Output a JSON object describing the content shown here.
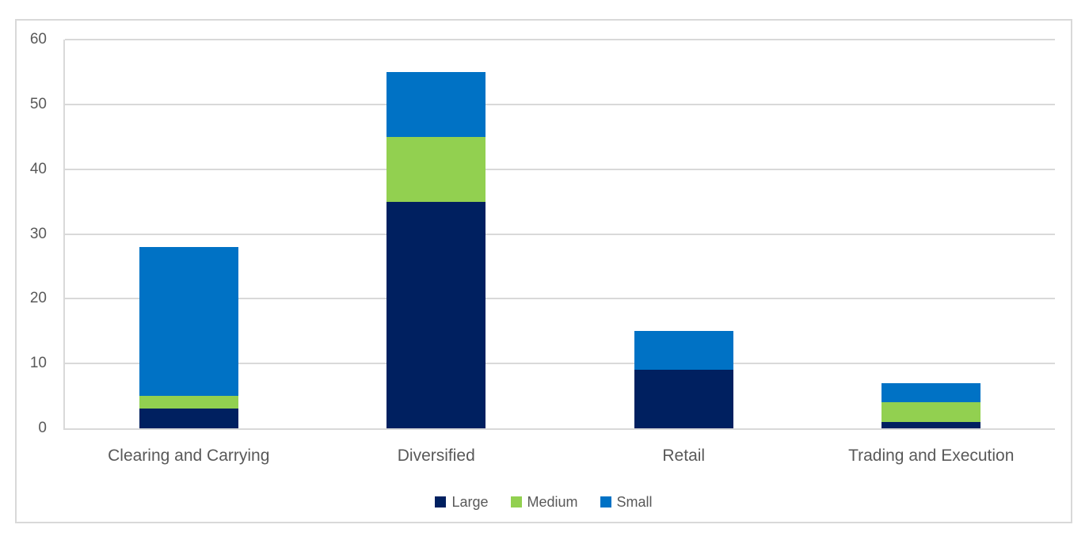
{
  "figure": {
    "background": "#FFFFFF",
    "frame_border_color": "#D9D9D9"
  },
  "chart_data": {
    "type": "bar",
    "stacked": true,
    "title": "",
    "xlabel": "",
    "ylabel": "",
    "categories": [
      "Clearing and Carrying",
      "Diversified",
      "Retail",
      "Trading and Execution"
    ],
    "series": [
      {
        "name": "Large",
        "color": "#002060",
        "values": [
          3,
          35,
          9,
          1
        ]
      },
      {
        "name": "Medium",
        "color": "#92D050",
        "values": [
          2,
          10,
          0,
          3
        ]
      },
      {
        "name": "Small",
        "color": "#0072C5",
        "values": [
          23,
          10,
          6,
          3
        ]
      }
    ],
    "ylim": [
      0,
      60
    ],
    "y_ticks": [
      0,
      10,
      20,
      30,
      40,
      50,
      60
    ],
    "grid": true,
    "legend_position": "bottom",
    "text_color": "#595959",
    "grid_color": "#D9D9D9"
  }
}
